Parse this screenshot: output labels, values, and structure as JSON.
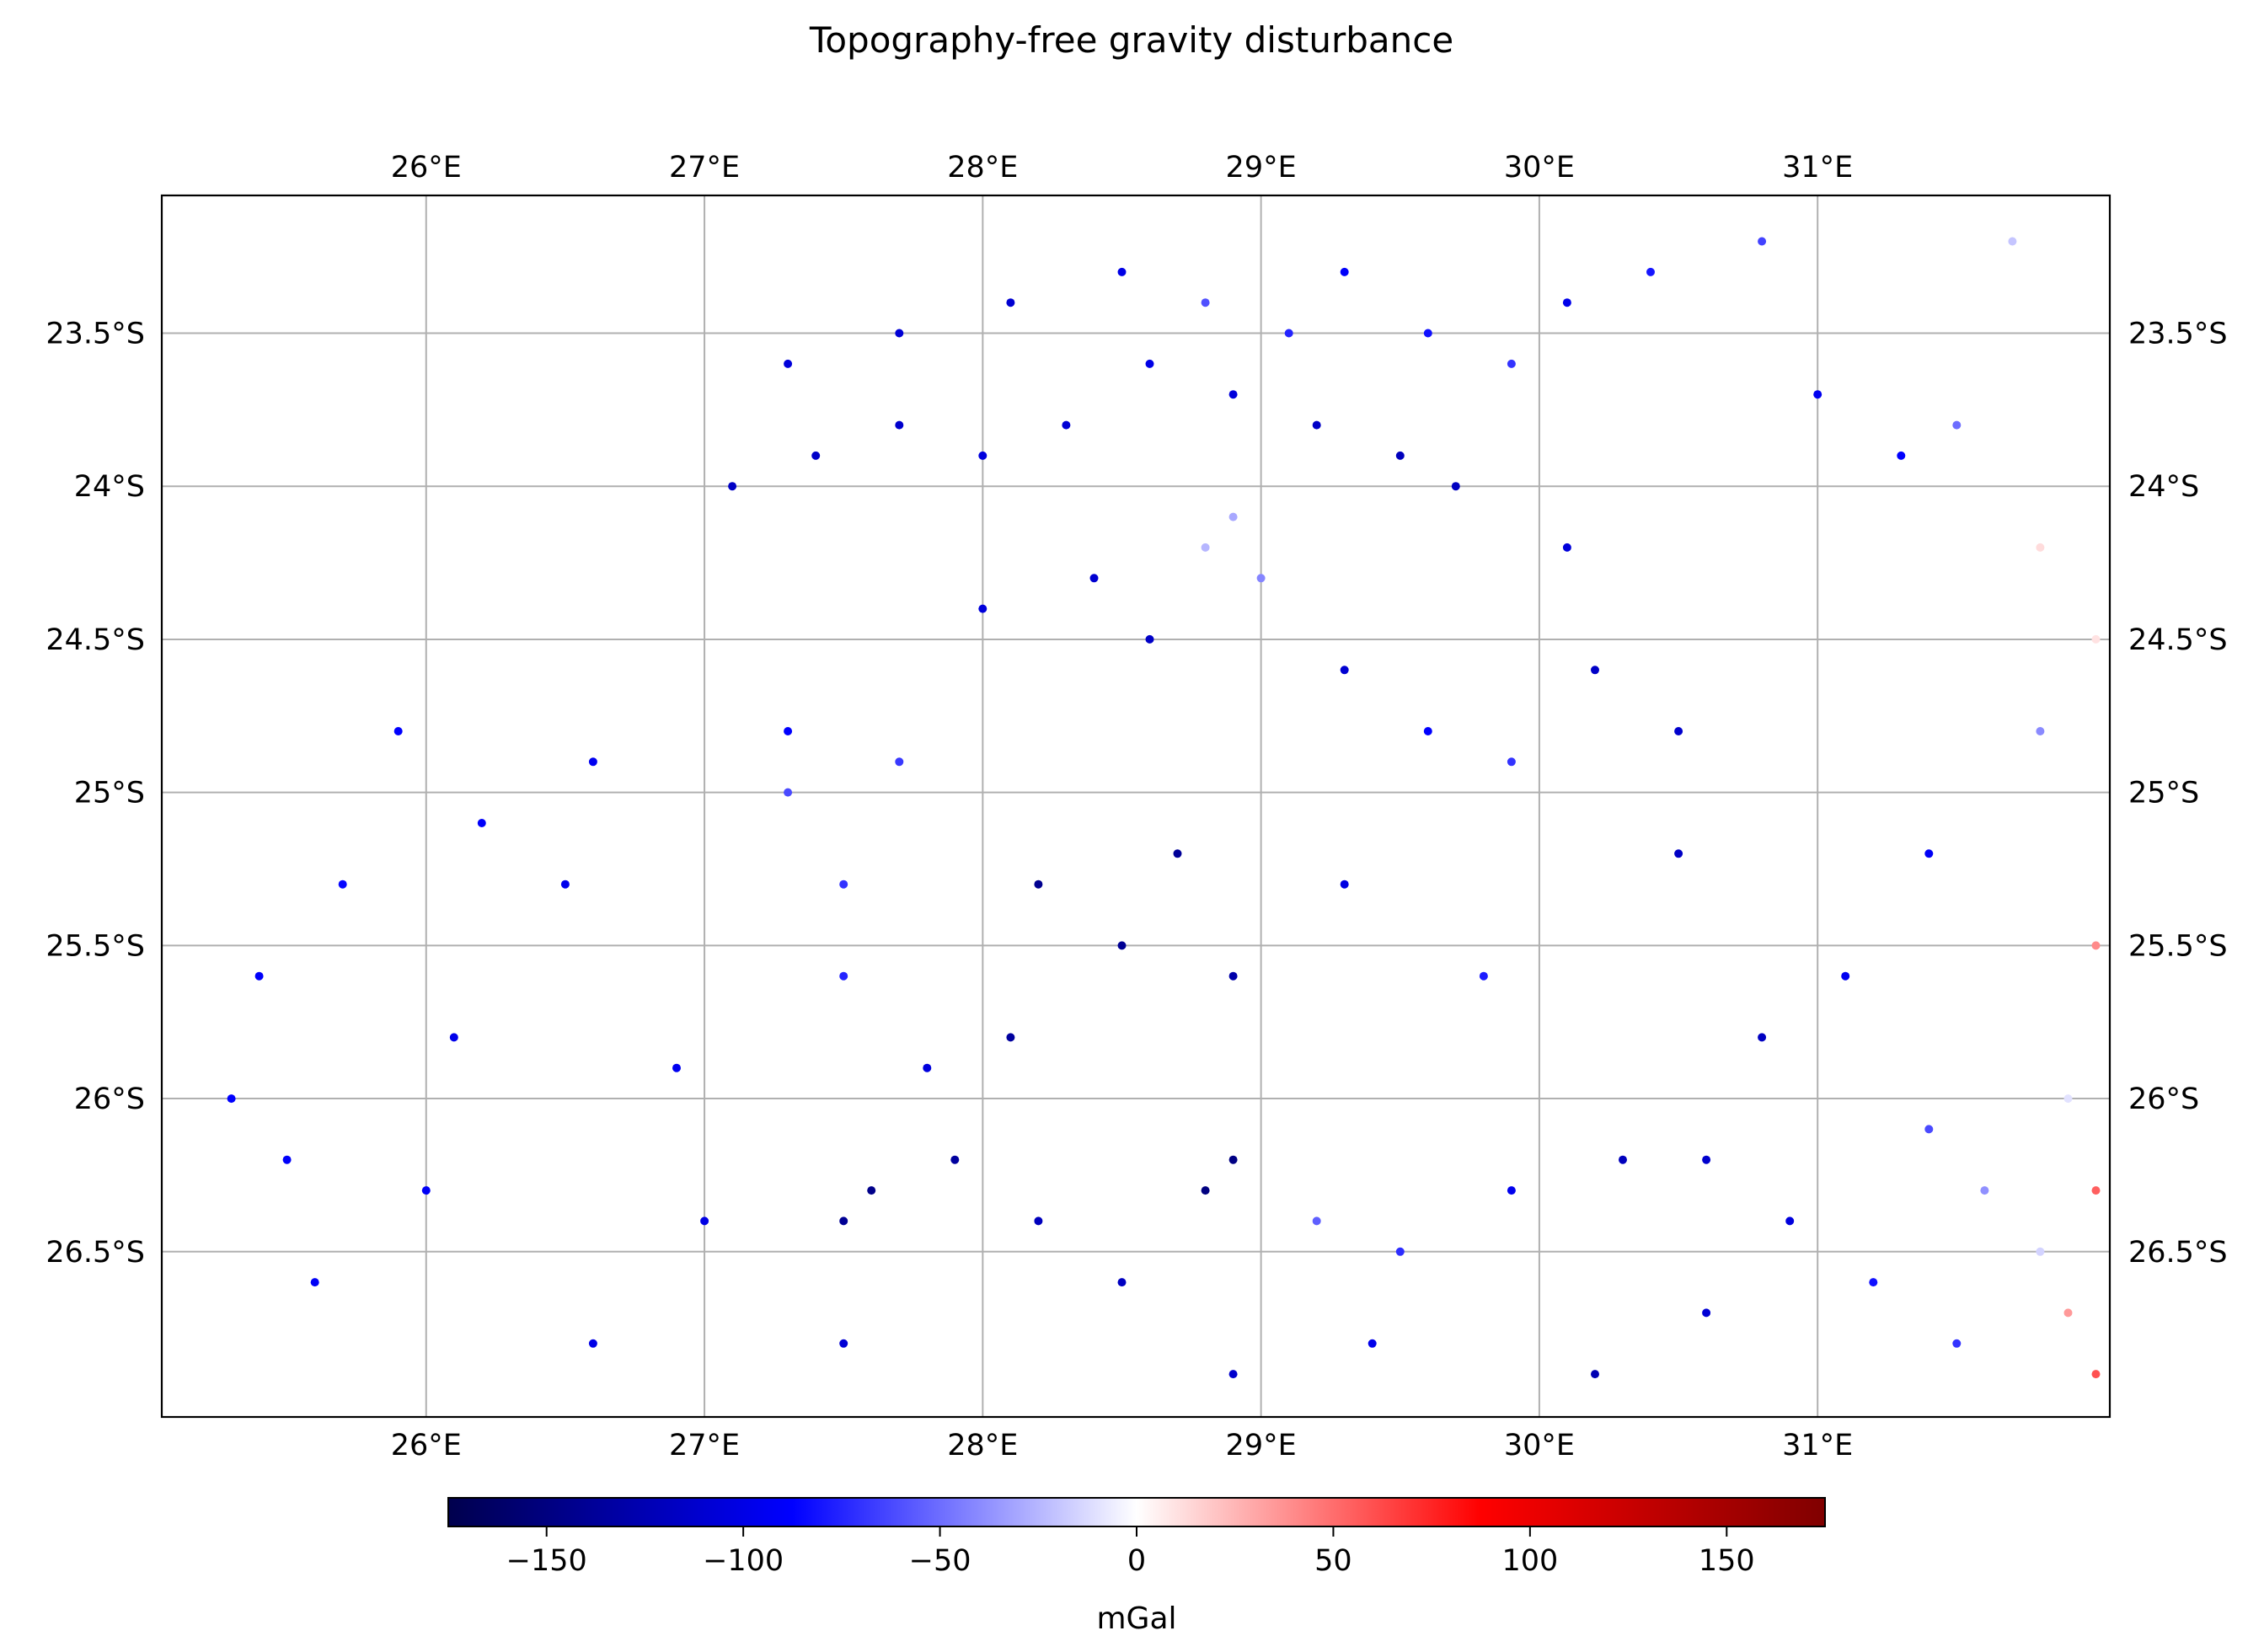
{
  "chart_data": {
    "type": "scatter",
    "title": "Topography-free gravity disturbance",
    "xlabel": "",
    "ylabel": "",
    "xlim": [
      25.05,
      32.05
    ],
    "ylim": [
      -27.04,
      -23.05
    ],
    "x_ticks": [
      26,
      27,
      28,
      29,
      30,
      31
    ],
    "x_tick_labels": [
      "26°E",
      "27°E",
      "28°E",
      "29°E",
      "30°E",
      "31°E"
    ],
    "y_ticks": [
      -23.5,
      -24,
      -24.5,
      -25,
      -25.5,
      -26,
      -26.5
    ],
    "y_tick_labels": [
      "23.5°S",
      "24°S",
      "24.5°S",
      "25°S",
      "25.5°S",
      "26°S",
      "26.5°S"
    ],
    "grid": true,
    "tick_labels_on": [
      "top",
      "bottom",
      "left",
      "right"
    ],
    "colormap": "seismic",
    "colormap_stops": [
      "#00004d",
      "#0000ff",
      "#ffffff",
      "#ff0000",
      "#800000"
    ],
    "colorbar": {
      "label": "mGal",
      "range": [
        -175,
        175
      ],
      "ticks": [
        -150,
        -100,
        -50,
        0,
        50,
        100,
        150
      ],
      "tick_labels": [
        "−150",
        "−100",
        "−50",
        "0",
        "50",
        "100",
        "150"
      ],
      "orientation": "horizontal",
      "position": "bottom"
    },
    "points": [
      [
        25.6,
        -26.6,
        -92
      ],
      [
        26.1,
        -25.8,
        -98
      ],
      [
        26.5,
        -25.3,
        -97
      ],
      [
        26.9,
        -25.9,
        -95
      ],
      [
        27.0,
        -26.4,
        -101
      ],
      [
        27.5,
        -26.8,
        -108
      ],
      [
        27.5,
        -26.4,
        -140
      ],
      [
        27.6,
        -26.3,
        -145
      ],
      [
        27.9,
        -26.2,
        -135
      ],
      [
        28.2,
        -26.4,
        -120
      ],
      [
        28.5,
        -26.6,
        -118
      ],
      [
        28.8,
        -26.3,
        -150
      ],
      [
        28.9,
        -26.2,
        -148
      ],
      [
        29.2,
        -26.4,
        -55
      ],
      [
        29.5,
        -26.5,
        -72
      ],
      [
        29.9,
        -26.3,
        -96
      ],
      [
        30.3,
        -26.2,
        -120
      ],
      [
        30.6,
        -26.7,
        -108
      ],
      [
        30.2,
        -26.9,
        -125
      ],
      [
        30.8,
        -25.8,
        -118
      ],
      [
        30.5,
        -25.2,
        -116
      ],
      [
        29.8,
        -25.6,
        -78
      ],
      [
        29.3,
        -25.3,
        -102
      ],
      [
        28.9,
        -25.6,
        -130
      ],
      [
        28.5,
        -25.5,
        -140
      ],
      [
        28.2,
        -25.3,
        -142
      ],
      [
        28.1,
        -25.8,
        -135
      ],
      [
        28.7,
        -25.2,
        -138
      ],
      [
        27.8,
        -25.9,
        -104
      ],
      [
        27.5,
        -25.3,
        -70
      ],
      [
        27.3,
        -25.0,
        -62
      ],
      [
        27.5,
        -25.6,
        -75
      ],
      [
        27.7,
        -24.9,
        -68
      ],
      [
        27.3,
        -24.8,
        -88
      ],
      [
        26.6,
        -24.9,
        -95
      ],
      [
        26.2,
        -25.1,
        -90
      ],
      [
        25.9,
        -24.8,
        -88
      ],
      [
        25.7,
        -25.3,
        -85
      ],
      [
        25.4,
        -25.6,
        -90
      ],
      [
        25.3,
        -26.0,
        -88
      ],
      [
        25.5,
        -26.2,
        -90
      ],
      [
        26.0,
        -26.3,
        -92
      ],
      [
        26.6,
        -26.8,
        -100
      ],
      [
        28.0,
        -24.4,
        -105
      ],
      [
        28.4,
        -24.3,
        -110
      ],
      [
        28.6,
        -24.5,
        -115
      ],
      [
        28.9,
        -24.1,
        -30
      ],
      [
        28.8,
        -24.2,
        -25
      ],
      [
        29.0,
        -24.3,
        -42
      ],
      [
        29.3,
        -24.6,
        -110
      ],
      [
        29.6,
        -24.8,
        -88
      ],
      [
        29.9,
        -24.9,
        -70
      ],
      [
        30.2,
        -24.6,
        -115
      ],
      [
        30.5,
        -24.8,
        -112
      ],
      [
        30.1,
        -24.2,
        -105
      ],
      [
        29.7,
        -24.0,
        -118
      ],
      [
        29.5,
        -23.9,
        -120
      ],
      [
        29.2,
        -23.8,
        -115
      ],
      [
        28.9,
        -23.7,
        -105
      ],
      [
        28.6,
        -23.6,
        -100
      ],
      [
        28.3,
        -23.8,
        -108
      ],
      [
        28.0,
        -23.9,
        -104
      ],
      [
        27.7,
        -23.8,
        -112
      ],
      [
        27.4,
        -23.9,
        -114
      ],
      [
        27.1,
        -24.0,
        -116
      ],
      [
        27.3,
        -23.6,
        -105
      ],
      [
        27.7,
        -23.5,
        -108
      ],
      [
        28.1,
        -23.4,
        -110
      ],
      [
        28.5,
        -23.3,
        -100
      ],
      [
        28.8,
        -23.4,
        -60
      ],
      [
        29.1,
        -23.5,
        -75
      ],
      [
        29.3,
        -23.3,
        -90
      ],
      [
        29.6,
        -23.5,
        -82
      ],
      [
        29.9,
        -23.6,
        -70
      ],
      [
        30.1,
        -23.4,
        -98
      ],
      [
        30.4,
        -23.3,
        -80
      ],
      [
        30.8,
        -23.2,
        -65
      ],
      [
        31.0,
        -23.7,
        -95
      ],
      [
        31.3,
        -23.9,
        -88
      ],
      [
        31.5,
        -23.8,
        -50
      ],
      [
        31.7,
        -23.2,
        -20
      ],
      [
        31.8,
        -24.2,
        12
      ],
      [
        32.0,
        -24.5,
        10
      ],
      [
        31.8,
        -24.8,
        -40
      ],
      [
        31.4,
        -25.2,
        -92
      ],
      [
        31.1,
        -25.6,
        -95
      ],
      [
        31.4,
        -26.1,
        -62
      ],
      [
        31.6,
        -26.3,
        -38
      ],
      [
        31.9,
        -26.0,
        -10
      ],
      [
        32.0,
        -25.5,
        40
      ],
      [
        32.0,
        -26.3,
        55
      ],
      [
        31.9,
        -26.7,
        35
      ],
      [
        32.0,
        -26.9,
        60
      ],
      [
        31.8,
        -26.5,
        -15
      ],
      [
        31.5,
        -26.8,
        -70
      ],
      [
        31.2,
        -26.6,
        -82
      ],
      [
        30.9,
        -26.4,
        -104
      ],
      [
        30.6,
        -26.2,
        -112
      ],
      [
        29.4,
        -26.8,
        -98
      ],
      [
        28.9,
        -26.9,
        -112
      ]
    ]
  }
}
